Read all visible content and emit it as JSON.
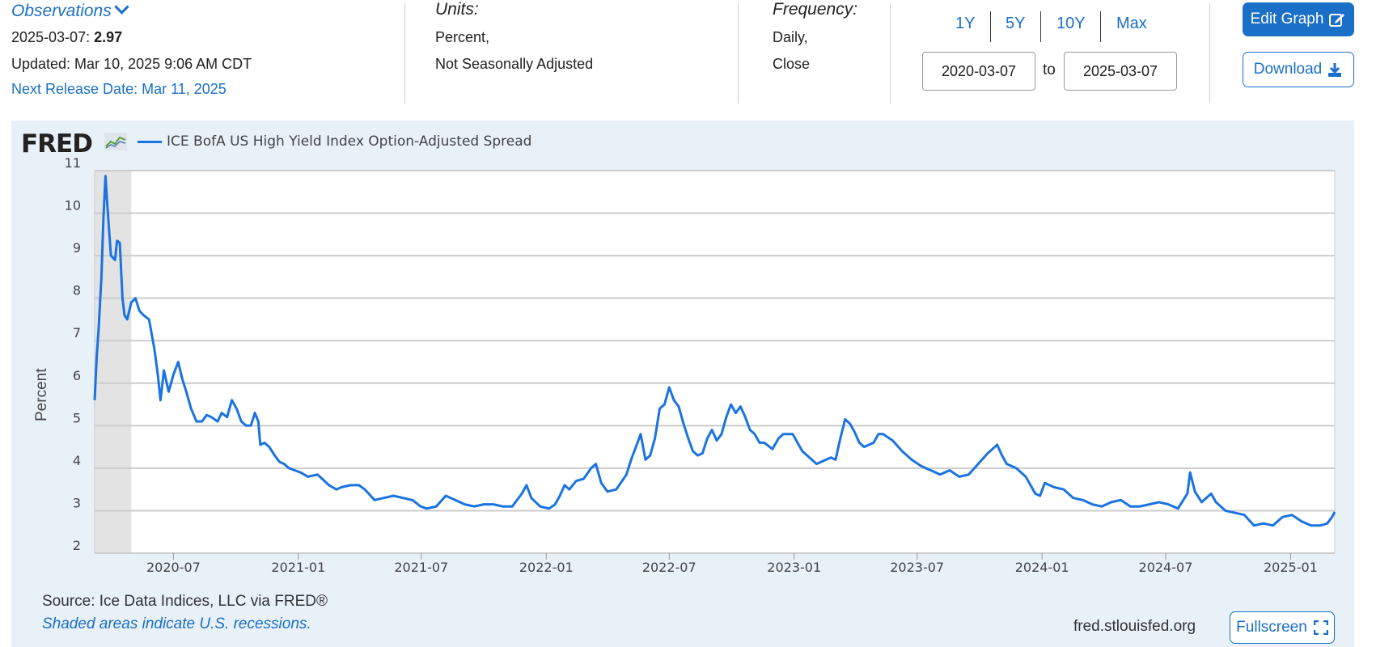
{
  "header": {
    "observations_label": "Observations",
    "obs_date": "2025-03-07:",
    "obs_value": "2.97",
    "updated": "Updated: Mar 10, 2025 9:06 AM CDT",
    "next_release": "Next Release Date: Mar 11, 2025",
    "units_label": "Units:",
    "units_line1": "Percent,",
    "units_line2": "Not Seasonally Adjusted",
    "frequency_label": "Frequency:",
    "frequency_line1": "Daily,",
    "frequency_line2": "Close",
    "range_buttons": [
      "1Y",
      "5Y",
      "10Y",
      "Max"
    ],
    "date_start": "2020-03-07",
    "date_end": "2025-03-07",
    "to_label": "to",
    "edit_graph": "Edit Graph",
    "download": "Download"
  },
  "footer": {
    "source": "Source: Ice Data Indices, LLC via FRED®",
    "recession_note": "Shaded areas indicate U.S. recessions.",
    "url": "fred.stlouisfed.org",
    "fullscreen": "Fullscreen"
  },
  "logo_text": "FRED",
  "colors": {
    "series": "#1a73e0",
    "accent": "#1a6fc7",
    "panel_bg": "#e8f0f8",
    "recession_shade": "#e3e3e3"
  },
  "chart_data": {
    "type": "line",
    "title": "",
    "ylabel": "Percent",
    "xlabel": "",
    "ylim": [
      2,
      11
    ],
    "xlim": [
      "2020-03-07",
      "2025-03-07"
    ],
    "y_ticks": [
      "2",
      "3",
      "4",
      "5",
      "6",
      "7",
      "8",
      "9",
      "10",
      "11"
    ],
    "x_ticks": [
      "2020-07",
      "2021-01",
      "2021-07",
      "2022-01",
      "2022-07",
      "2023-01",
      "2023-07",
      "2024-01",
      "2024-07",
      "2025-01"
    ],
    "grid": true,
    "legend_position": "top-left",
    "recessions": [
      {
        "start": "2020-03-07",
        "end": "2020-04-30"
      }
    ],
    "series": [
      {
        "name": "ICE BofA US High Yield Index Option-Adjusted Spread",
        "points": [
          [
            "2020-03-07",
            5.6
          ],
          [
            "2020-03-10",
            6.6
          ],
          [
            "2020-03-13",
            7.3
          ],
          [
            "2020-03-17",
            8.5
          ],
          [
            "2020-03-20",
            9.9
          ],
          [
            "2020-03-23",
            10.87
          ],
          [
            "2020-03-26",
            10.1
          ],
          [
            "2020-03-31",
            9.0
          ],
          [
            "2020-04-06",
            8.9
          ],
          [
            "2020-04-09",
            9.35
          ],
          [
            "2020-04-13",
            9.3
          ],
          [
            "2020-04-17",
            8.0
          ],
          [
            "2020-04-20",
            7.6
          ],
          [
            "2020-04-24",
            7.5
          ],
          [
            "2020-04-30",
            7.9
          ],
          [
            "2020-05-06",
            8.0
          ],
          [
            "2020-05-12",
            7.7
          ],
          [
            "2020-05-18",
            7.6
          ],
          [
            "2020-05-26",
            7.5
          ],
          [
            "2020-06-03",
            6.8
          ],
          [
            "2020-06-08",
            6.2
          ],
          [
            "2020-06-12",
            5.6
          ],
          [
            "2020-06-17",
            6.3
          ],
          [
            "2020-06-24",
            5.8
          ],
          [
            "2020-07-01",
            6.2
          ],
          [
            "2020-07-08",
            6.5
          ],
          [
            "2020-07-14",
            6.1
          ],
          [
            "2020-07-20",
            5.8
          ],
          [
            "2020-07-27",
            5.4
          ],
          [
            "2020-08-04",
            5.1
          ],
          [
            "2020-08-12",
            5.1
          ],
          [
            "2020-08-19",
            5.25
          ],
          [
            "2020-08-26",
            5.2
          ],
          [
            "2020-09-04",
            5.1
          ],
          [
            "2020-09-10",
            5.3
          ],
          [
            "2020-09-18",
            5.2
          ],
          [
            "2020-09-25",
            5.6
          ],
          [
            "2020-10-02",
            5.4
          ],
          [
            "2020-10-09",
            5.1
          ],
          [
            "2020-10-16",
            5.0
          ],
          [
            "2020-10-23",
            5.0
          ],
          [
            "2020-10-29",
            5.3
          ],
          [
            "2020-11-03",
            5.1
          ],
          [
            "2020-11-06",
            4.55
          ],
          [
            "2020-11-12",
            4.6
          ],
          [
            "2020-11-19",
            4.5
          ],
          [
            "2020-11-27",
            4.3
          ],
          [
            "2020-12-04",
            4.15
          ],
          [
            "2020-12-11",
            4.1
          ],
          [
            "2020-12-18",
            4.0
          ],
          [
            "2021-01-04",
            3.9
          ],
          [
            "2021-01-15",
            3.8
          ],
          [
            "2021-01-29",
            3.85
          ],
          [
            "2021-02-05",
            3.75
          ],
          [
            "2021-02-15",
            3.6
          ],
          [
            "2021-02-26",
            3.5
          ],
          [
            "2021-03-05",
            3.55
          ],
          [
            "2021-03-19",
            3.6
          ],
          [
            "2021-03-31",
            3.6
          ],
          [
            "2021-04-09",
            3.5
          ],
          [
            "2021-04-23",
            3.25
          ],
          [
            "2021-05-07",
            3.3
          ],
          [
            "2021-05-21",
            3.35
          ],
          [
            "2021-06-04",
            3.3
          ],
          [
            "2021-06-18",
            3.25
          ],
          [
            "2021-06-30",
            3.1
          ],
          [
            "2021-07-09",
            3.05
          ],
          [
            "2021-07-23",
            3.1
          ],
          [
            "2021-08-06",
            3.35
          ],
          [
            "2021-08-20",
            3.25
          ],
          [
            "2021-09-03",
            3.15
          ],
          [
            "2021-09-17",
            3.1
          ],
          [
            "2021-10-01",
            3.15
          ],
          [
            "2021-10-15",
            3.15
          ],
          [
            "2021-10-29",
            3.1
          ],
          [
            "2021-11-12",
            3.1
          ],
          [
            "2021-11-26",
            3.4
          ],
          [
            "2021-12-03",
            3.6
          ],
          [
            "2021-12-10",
            3.3
          ],
          [
            "2021-12-23",
            3.1
          ],
          [
            "2022-01-05",
            3.05
          ],
          [
            "2022-01-14",
            3.15
          ],
          [
            "2022-01-21",
            3.35
          ],
          [
            "2022-01-28",
            3.6
          ],
          [
            "2022-02-04",
            3.5
          ],
          [
            "2022-02-14",
            3.7
          ],
          [
            "2022-02-25",
            3.75
          ],
          [
            "2022-03-08",
            4.0
          ],
          [
            "2022-03-15",
            4.1
          ],
          [
            "2022-03-23",
            3.65
          ],
          [
            "2022-04-01",
            3.45
          ],
          [
            "2022-04-14",
            3.5
          ],
          [
            "2022-04-29",
            3.85
          ],
          [
            "2022-05-06",
            4.2
          ],
          [
            "2022-05-13",
            4.5
          ],
          [
            "2022-05-20",
            4.8
          ],
          [
            "2022-05-27",
            4.2
          ],
          [
            "2022-06-03",
            4.3
          ],
          [
            "2022-06-10",
            4.7
          ],
          [
            "2022-06-17",
            5.4
          ],
          [
            "2022-06-24",
            5.5
          ],
          [
            "2022-07-01",
            5.9
          ],
          [
            "2022-07-08",
            5.6
          ],
          [
            "2022-07-15",
            5.45
          ],
          [
            "2022-07-22",
            5.05
          ],
          [
            "2022-07-29",
            4.7
          ],
          [
            "2022-08-05",
            4.4
          ],
          [
            "2022-08-12",
            4.3
          ],
          [
            "2022-08-19",
            4.35
          ],
          [
            "2022-08-26",
            4.7
          ],
          [
            "2022-09-02",
            4.9
          ],
          [
            "2022-09-09",
            4.65
          ],
          [
            "2022-09-16",
            4.8
          ],
          [
            "2022-09-23",
            5.2
          ],
          [
            "2022-09-30",
            5.5
          ],
          [
            "2022-10-07",
            5.3
          ],
          [
            "2022-10-14",
            5.45
          ],
          [
            "2022-10-21",
            5.2
          ],
          [
            "2022-10-28",
            4.9
          ],
          [
            "2022-11-04",
            4.8
          ],
          [
            "2022-11-11",
            4.6
          ],
          [
            "2022-11-18",
            4.6
          ],
          [
            "2022-11-30",
            4.45
          ],
          [
            "2022-12-09",
            4.7
          ],
          [
            "2022-12-16",
            4.8
          ],
          [
            "2022-12-30",
            4.8
          ],
          [
            "2023-01-06",
            4.6
          ],
          [
            "2023-01-13",
            4.4
          ],
          [
            "2023-01-27",
            4.2
          ],
          [
            "2023-02-03",
            4.1
          ],
          [
            "2023-02-10",
            4.15
          ],
          [
            "2023-02-24",
            4.25
          ],
          [
            "2023-03-03",
            4.2
          ],
          [
            "2023-03-10",
            4.7
          ],
          [
            "2023-03-17",
            5.15
          ],
          [
            "2023-03-24",
            5.05
          ],
          [
            "2023-03-31",
            4.85
          ],
          [
            "2023-04-07",
            4.6
          ],
          [
            "2023-04-14",
            4.5
          ],
          [
            "2023-04-28",
            4.6
          ],
          [
            "2023-05-05",
            4.8
          ],
          [
            "2023-05-12",
            4.8
          ],
          [
            "2023-05-26",
            4.65
          ],
          [
            "2023-06-09",
            4.4
          ],
          [
            "2023-06-23",
            4.2
          ],
          [
            "2023-07-07",
            4.05
          ],
          [
            "2023-07-21",
            3.95
          ],
          [
            "2023-08-04",
            3.85
          ],
          [
            "2023-08-18",
            3.95
          ],
          [
            "2023-09-01",
            3.8
          ],
          [
            "2023-09-15",
            3.85
          ],
          [
            "2023-09-29",
            4.1
          ],
          [
            "2023-10-13",
            4.35
          ],
          [
            "2023-10-27",
            4.55
          ],
          [
            "2023-11-03",
            4.3
          ],
          [
            "2023-11-10",
            4.1
          ],
          [
            "2023-11-24",
            4.0
          ],
          [
            "2023-12-08",
            3.8
          ],
          [
            "2023-12-22",
            3.4
          ],
          [
            "2023-12-29",
            3.35
          ],
          [
            "2024-01-05",
            3.65
          ],
          [
            "2024-01-19",
            3.55
          ],
          [
            "2024-02-02",
            3.5
          ],
          [
            "2024-02-16",
            3.3
          ],
          [
            "2024-03-01",
            3.25
          ],
          [
            "2024-03-15",
            3.15
          ],
          [
            "2024-03-29",
            3.1
          ],
          [
            "2024-04-12",
            3.2
          ],
          [
            "2024-04-26",
            3.25
          ],
          [
            "2024-05-10",
            3.1
          ],
          [
            "2024-05-24",
            3.1
          ],
          [
            "2024-06-07",
            3.15
          ],
          [
            "2024-06-21",
            3.2
          ],
          [
            "2024-07-05",
            3.15
          ],
          [
            "2024-07-19",
            3.05
          ],
          [
            "2024-08-02",
            3.4
          ],
          [
            "2024-08-06",
            3.9
          ],
          [
            "2024-08-13",
            3.45
          ],
          [
            "2024-08-23",
            3.2
          ],
          [
            "2024-09-06",
            3.4
          ],
          [
            "2024-09-13",
            3.2
          ],
          [
            "2024-09-27",
            3.0
          ],
          [
            "2024-10-11",
            2.95
          ],
          [
            "2024-10-25",
            2.9
          ],
          [
            "2024-11-08",
            2.65
          ],
          [
            "2024-11-22",
            2.7
          ],
          [
            "2024-12-06",
            2.65
          ],
          [
            "2024-12-20",
            2.85
          ],
          [
            "2025-01-03",
            2.9
          ],
          [
            "2025-01-17",
            2.75
          ],
          [
            "2025-01-31",
            2.65
          ],
          [
            "2025-02-14",
            2.65
          ],
          [
            "2025-02-24",
            2.7
          ],
          [
            "2025-03-03",
            2.85
          ],
          [
            "2025-03-07",
            2.97
          ]
        ]
      }
    ]
  }
}
